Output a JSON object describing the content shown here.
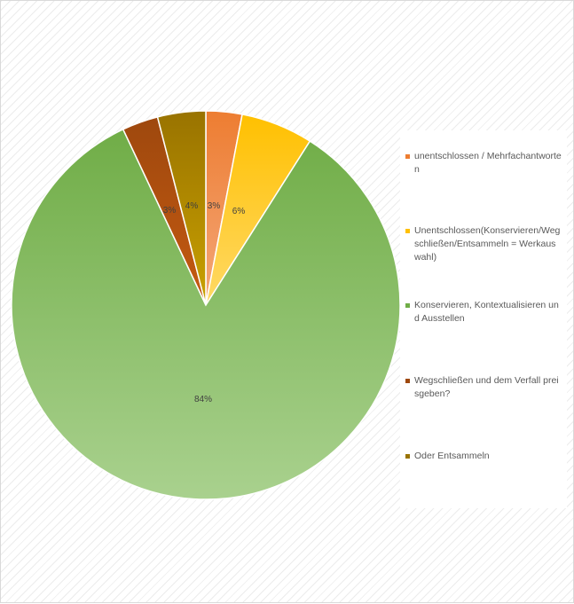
{
  "chart_data": {
    "type": "pie",
    "title": "",
    "slices": [
      {
        "label": "unentschlossen / Mehrfachantworten",
        "value": 3,
        "display": "3%",
        "color_light": "#f4a77a",
        "color_dark": "#ed7d31"
      },
      {
        "label": "Unentschlossen(Konservieren/Wegschließen/Entsammeln = Werkauswahl)",
        "value": 6,
        "display": "6%",
        "color_light": "#ffd966",
        "color_dark": "#ffc000"
      },
      {
        "label": "Konservieren, Kontextualisieren und Ausstellen",
        "value": 84,
        "display": "84%",
        "color_light": "#a9d18e",
        "color_dark": "#70ad47"
      },
      {
        "label": "Wegschließen und dem Verfall preisgeben?",
        "value": 3,
        "display": "3%",
        "color_light": "#c55a11",
        "color_dark": "#9e480e"
      },
      {
        "label": "Oder Entsammeln",
        "value": 4,
        "display": "4%",
        "color_light": "#c9a100",
        "color_dark": "#997300"
      }
    ],
    "legend_position": "right"
  },
  "legend": {
    "items": [
      {
        "label": "unentschlossen / Mehrfachantworten",
        "color": "#ed7d31"
      },
      {
        "label": "Unentschlossen(Konservieren/Wegschließen/Entsammeln = Werkauswahl)",
        "color": "#ffc000"
      },
      {
        "label": "Konservieren, Kontextualisieren und Ausstellen",
        "color": "#70ad47"
      },
      {
        "label": "Wegschließen und dem Verfall preisgeben?",
        "color": "#9e480e"
      },
      {
        "label": "Oder Entsammeln",
        "color": "#997300"
      }
    ]
  }
}
